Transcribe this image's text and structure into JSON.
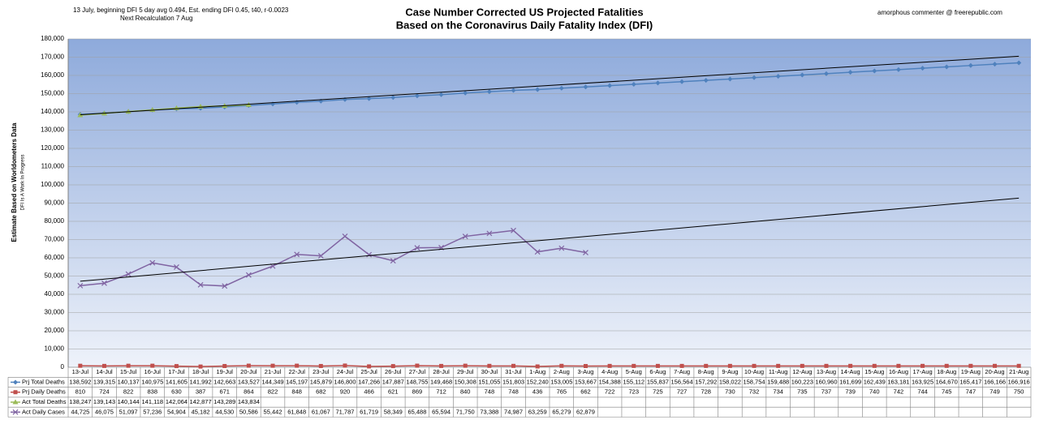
{
  "chart_data": {
    "type": "line",
    "title": "Case Number Corrected US Projected Fatalities",
    "subtitle": "Based on the Coronavirus Daily Fatality Index (DFI)",
    "note_left": "13 July, beginning DFI  5 day avg 0.494, Est. ending DFI  0.45,  t40, r-0.0023",
    "note_left_2": "Next Recalculation 7 Aug",
    "note_right": "amorphous commenter  @  freerepublic.com",
    "ylabel": "Estimate Based on Worldometers  Data",
    "ylabel_sub": "DFI Is A Work In Progress",
    "ylim": [
      0,
      180000
    ],
    "yticks": [
      0,
      {
        "value": 10000,
        "label": "10,000"
      },
      {
        "value": 20000,
        "label": "20,000"
      },
      {
        "value": 30000,
        "label": "30,000"
      },
      {
        "value": 40000,
        "label": "40,000"
      },
      {
        "value": 50000,
        "label": "50,000"
      },
      {
        "value": 60000,
        "label": "60,000"
      },
      {
        "value": 70000,
        "label": "70,000"
      },
      {
        "value": 80000,
        "label": "80,000"
      },
      {
        "value": 90000,
        "label": "90,000"
      },
      {
        "value": 100000,
        "label": "100,000"
      },
      {
        "value": 110000,
        "label": "110,000"
      },
      {
        "value": 120000,
        "label": "120,000"
      },
      {
        "value": 130000,
        "label": "130,000"
      },
      {
        "value": 140000,
        "label": "140,000"
      },
      {
        "value": 150000,
        "label": "150,000"
      },
      {
        "value": 160000,
        "label": "160,000"
      },
      {
        "value": 170000,
        "label": "170,000"
      },
      {
        "value": 180000,
        "label": "180,000"
      }
    ],
    "grid": true,
    "categories": [
      "13-Jul",
      "14-Jul",
      "15-Jul",
      "16-Jul",
      "17-Jul",
      "18-Jul",
      "19-Jul",
      "20-Jul",
      "21-Jul",
      "22-Jul",
      "23-Jul",
      "24-Jul",
      "25-Jul",
      "26-Jul",
      "27-Jul",
      "28-Jul",
      "29-Jul",
      "30-Jul",
      "31-Jul",
      "1-Aug",
      "2-Aug",
      "3-Aug",
      "4-Aug",
      "5-Aug",
      "6-Aug",
      "7-Aug",
      "8-Aug",
      "9-Aug",
      "10-Aug",
      "11-Aug",
      "12-Aug",
      "13-Aug",
      "14-Aug",
      "15-Aug",
      "16-Aug",
      "17-Aug",
      "18-Aug",
      "19-Aug",
      "20-Aug",
      "21-Aug"
    ],
    "series": [
      {
        "name": "Prj Total Deaths",
        "color": "#4f81bd",
        "marker": "diamond",
        "trendline": false,
        "values": [
          138592,
          139315,
          140137,
          140975,
          141605,
          141992,
          142663,
          143527,
          144349,
          145197,
          145879,
          146800,
          147266,
          147887,
          148755,
          149468,
          150308,
          151055,
          151803,
          152240,
          153005,
          153667,
          154388,
          155112,
          155837,
          156564,
          157292,
          158022,
          158754,
          159488,
          160223,
          160960,
          161699,
          162439,
          163181,
          163925,
          164670,
          165417,
          166166,
          166916
        ],
        "value_labels": [
          "138,592",
          "139,315",
          "140,137",
          "140,975",
          "141,605",
          "141,992",
          "142,663",
          "143,527",
          "144,349",
          "145,197",
          "145,879",
          "146,800",
          "147,266",
          "147,887",
          "148,755",
          "149,468",
          "150,308",
          "151,055",
          "151,803",
          "152,240",
          "153,005",
          "153,667",
          "154,388",
          "155,112",
          "155,837",
          "156,564",
          "157,292",
          "158,022",
          "158,754",
          "159,488",
          "160,223",
          "160,960",
          "161,699",
          "162,439",
          "163,181",
          "163,925",
          "164,670",
          "165,417",
          "166,166",
          "166,916"
        ]
      },
      {
        "name": "Prj Daily Deaths",
        "color": "#c0504d",
        "marker": "square",
        "trendline": false,
        "values": [
          810,
          724,
          822,
          838,
          630,
          387,
          671,
          864,
          822,
          848,
          682,
          920,
          466,
          621,
          869,
          712,
          840,
          748,
          748,
          436,
          765,
          662,
          722,
          723,
          725,
          727,
          728,
          730,
          732,
          734,
          735,
          737,
          739,
          740,
          742,
          744,
          745,
          747,
          749,
          750
        ],
        "value_labels": [
          "810",
          "724",
          "822",
          "838",
          "630",
          "387",
          "671",
          "864",
          "822",
          "848",
          "682",
          "920",
          "466",
          "621",
          "869",
          "712",
          "840",
          "748",
          "748",
          "436",
          "765",
          "662",
          "722",
          "723",
          "725",
          "727",
          "728",
          "730",
          "732",
          "734",
          "735",
          "737",
          "739",
          "740",
          "742",
          "744",
          "745",
          "747",
          "749",
          "750"
        ]
      },
      {
        "name": "Act Total Deaths",
        "color": "#9bbb59",
        "marker": "triangle",
        "trendline": true,
        "values": [
          138247,
          139143,
          140144,
          141118,
          142064,
          142877,
          143289,
          143834,
          null,
          null,
          null,
          null,
          null,
          null,
          null,
          null,
          null,
          null,
          null,
          null,
          null,
          null,
          null,
          null,
          null,
          null,
          null,
          null,
          null,
          null,
          null,
          null,
          null,
          null,
          null,
          null,
          null,
          null,
          null,
          null
        ],
        "value_labels": [
          "138,247",
          "139,143",
          "140,144",
          "141,118",
          "142,064",
          "142,877",
          "143,289",
          "143,834",
          null,
          null,
          null,
          null,
          null,
          null,
          null,
          null,
          null,
          null,
          null,
          null,
          null,
          null,
          null,
          null,
          null,
          null,
          null,
          null,
          null,
          null,
          null,
          null,
          null,
          null,
          null,
          null,
          null,
          null,
          null,
          null
        ]
      },
      {
        "name": "Act Daily Cases",
        "color": "#8064a2",
        "marker": "x",
        "trendline": true,
        "values": [
          44725,
          46075,
          51097,
          57236,
          54904,
          45182,
          44530,
          50586,
          55442,
          61848,
          61067,
          71787,
          61719,
          58349,
          65488,
          65594,
          71750,
          73388,
          74987,
          63259,
          65279,
          62879,
          null,
          null,
          null,
          null,
          null,
          null,
          null,
          null,
          null,
          null,
          null,
          null,
          null,
          null,
          null,
          null,
          null,
          null
        ],
        "value_labels": [
          "44,725",
          "46,075",
          "51,097",
          "57,236",
          "54,904",
          "45,182",
          "44,530",
          "50,586",
          "55,442",
          "61,848",
          "61,067",
          "71,787",
          "61,719",
          "58,349",
          "65,488",
          "65,594",
          "71,750",
          "73,388",
          "74,987",
          "63,259",
          "65,279",
          "62,879",
          null,
          null,
          null,
          null,
          null,
          null,
          null,
          null,
          null,
          null,
          null,
          null,
          null,
          null,
          null,
          null,
          null,
          null
        ]
      }
    ]
  }
}
